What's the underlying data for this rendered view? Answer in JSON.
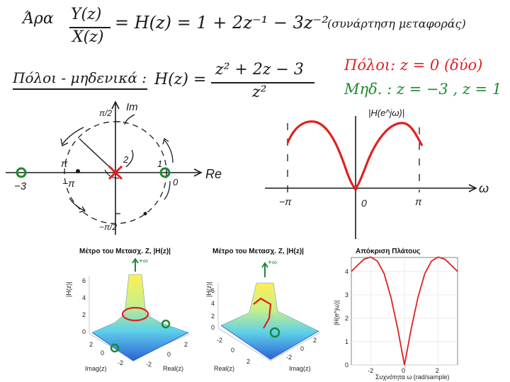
{
  "notes": {
    "line1": {
      "prefix": "Άρα",
      "numerator": "Y(z)",
      "denominator": "X(z)",
      "equation": "= H(z) = 1 + 2z⁻¹ − 3z⁻²",
      "annotation": "(συνάρτηση μεταφοράς)"
    },
    "line2": {
      "label": "Πόλοι - μηδενικά :",
      "lhs": "H(z) =",
      "numerator": "z² + 2z − 3",
      "denominator": "z²",
      "poles": "Πόλοι: z = 0 (δύο)",
      "zeros": "Μηδ. : z = −3 , z = 1"
    }
  },
  "zplane": {
    "im_label": "Im",
    "re_label": "Re",
    "top_label": "π/2",
    "bottom_label": "−π/2",
    "left_label": "π",
    "left_label2": "−π",
    "zero_left_label": "−3",
    "right_label": "1",
    "right_label2": "0",
    "pole_mark_label": "2"
  },
  "magsketch": {
    "title": "|H(e^jω)|",
    "x_labels": [
      "−π",
      "0",
      "π"
    ],
    "axis_label": "ω"
  },
  "chart_data": [
    {
      "type": "surface",
      "title": "Μέτρο του Μετασχ. Z, |H(z)|",
      "xlabel": "Real(z)",
      "ylabel": "Imag(z)",
      "zlabel": "|H(z)|",
      "z_ticks": [
        0,
        2,
        4,
        6
      ],
      "x_ticks": [
        -2,
        0,
        2
      ],
      "y_ticks": [
        -2,
        0,
        2
      ],
      "annotation": "+∞"
    },
    {
      "type": "surface",
      "title": "Μέτρο του Μετασχ. Z, |H(z)|",
      "xlabel": "Real(z)",
      "ylabel": "Imag(z)",
      "zlabel": "|H(z)|",
      "z_ticks": [
        0,
        2,
        4,
        6
      ],
      "x_ticks": [
        -2,
        0,
        2
      ],
      "y_ticks": [
        -2,
        0,
        2
      ],
      "annotation": "+∞"
    },
    {
      "type": "line",
      "title": "Απόκριση Πλάτους",
      "xlabel": "Συχνότητα ω (rad/sample)",
      "ylabel": "|H(e^jω)|",
      "xlim": [
        -3.1416,
        3.1416
      ],
      "ylim": [
        0,
        4.6
      ],
      "x_ticks": [
        -2,
        0,
        2
      ],
      "y_ticks": [
        0,
        1,
        2,
        3,
        4
      ],
      "series": [
        {
          "x": [
            -3.1416,
            -2.8,
            -2.4,
            -2.0,
            -1.6,
            -1.2,
            -0.8,
            -0.4,
            0.0,
            0.4,
            0.8,
            1.2,
            1.6,
            2.0,
            2.4,
            2.8,
            3.1416
          ],
          "values": [
            4.0,
            4.25,
            4.52,
            4.62,
            4.45,
            3.9,
            2.9,
            1.55,
            0.0,
            1.55,
            2.9,
            3.9,
            4.45,
            4.62,
            4.52,
            4.25,
            4.0
          ]
        }
      ]
    }
  ]
}
